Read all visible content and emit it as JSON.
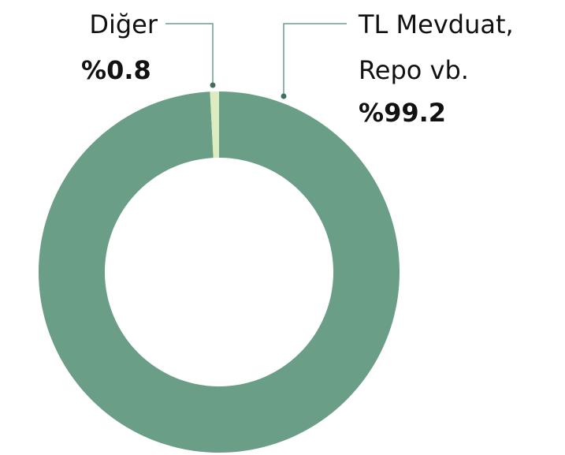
{
  "chart_data": {
    "type": "donut",
    "categories": [
      "TL Mevduat, Repo vb.",
      "Diğer"
    ],
    "values": [
      99.2,
      0.8
    ],
    "value_labels": [
      "%99.2",
      "%0.8"
    ],
    "colors": [
      "#6b9e86",
      "#dcebc0"
    ]
  }
}
